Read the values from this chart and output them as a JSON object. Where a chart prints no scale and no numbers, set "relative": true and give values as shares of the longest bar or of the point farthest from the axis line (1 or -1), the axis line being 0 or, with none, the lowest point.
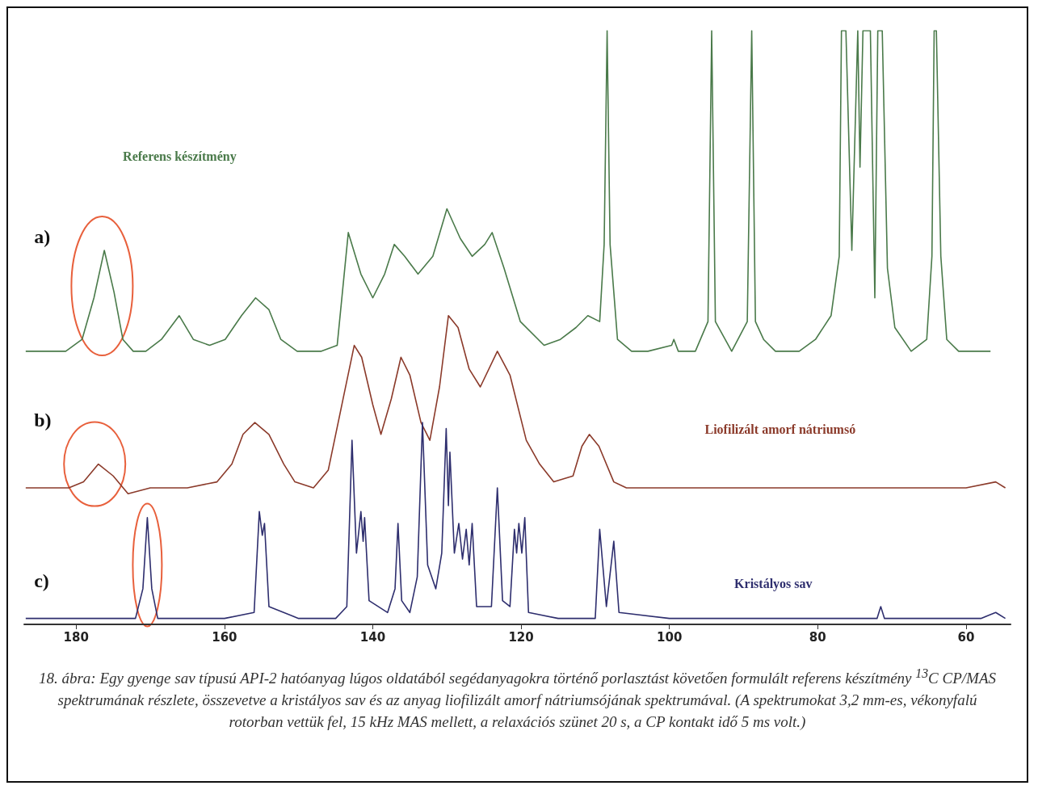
{
  "chart_data": {
    "type": "line",
    "relative": true,
    "xlim": [
      187,
      54
    ],
    "xticks": [
      180,
      160,
      140,
      120,
      100,
      80,
      60
    ],
    "grid": false,
    "legend": false,
    "marker": "none",
    "line_style": "solid",
    "series": [
      {
        "name": "Referens készítmény",
        "color": "#4a7a4a",
        "x": [
          186.8,
          181.4,
          179.2,
          177.6,
          176.2,
          174.9,
          173.7,
          172.3,
          170.6,
          168.5,
          166.1,
          164.2,
          162.0,
          159.9,
          157.7,
          155.8,
          154.0,
          152.4,
          150.2,
          147.0,
          144.8,
          143.3,
          141.6,
          140.0,
          138.4,
          137.1,
          135.7,
          133.9,
          131.9,
          130.0,
          128.2,
          126.6,
          124.9,
          123.9,
          122.3,
          120.1,
          116.9,
          114.7,
          112.6,
          111.0,
          109.4,
          108.8,
          108.4,
          108.0,
          107.0,
          105.1,
          102.9,
          99.7,
          99.4,
          98.8,
          96.5,
          94.8,
          94.3,
          93.8,
          91.6,
          89.5,
          88.9,
          88.4,
          87.3,
          85.7,
          82.5,
          80.3,
          78.2,
          77.1,
          76.8,
          76.2,
          75.4,
          74.6,
          74.3,
          73.9,
          72.9,
          72.3,
          71.9,
          71.3,
          70.6,
          69.6,
          67.4,
          65.3,
          64.6,
          64.3,
          64.0,
          63.4,
          62.6,
          61.0,
          58.8,
          56.7
        ],
        "values": [
          0.46,
          0.46,
          0.48,
          0.55,
          0.63,
          0.56,
          0.48,
          0.46,
          0.46,
          0.48,
          0.52,
          0.48,
          0.47,
          0.48,
          0.52,
          0.55,
          0.53,
          0.48,
          0.46,
          0.46,
          0.47,
          0.66,
          0.59,
          0.55,
          0.59,
          0.64,
          0.62,
          0.59,
          0.62,
          0.7,
          0.65,
          0.62,
          0.64,
          0.66,
          0.6,
          0.51,
          0.47,
          0.48,
          0.5,
          0.52,
          0.51,
          0.64,
          1,
          0.64,
          0.48,
          0.46,
          0.46,
          0.47,
          0.48,
          0.46,
          0.46,
          0.51,
          1,
          0.51,
          0.46,
          0.51,
          1,
          0.51,
          0.48,
          0.46,
          0.46,
          0.48,
          0.52,
          0.62,
          1,
          1,
          0.63,
          1,
          0.77,
          1,
          1,
          0.55,
          1,
          1,
          0.6,
          0.5,
          0.46,
          0.48,
          0.62,
          1,
          1,
          0.62,
          0.48,
          0.46,
          0.46,
          0.46
        ]
      },
      {
        "name": "Liofilizált amorf nátriumsó",
        "color": "#8b3a2a",
        "x": [
          186.8,
          181,
          179,
          177.0,
          175,
          173,
          170,
          165,
          161,
          159,
          157.5,
          155.9,
          154,
          152,
          150.5,
          148,
          146,
          144,
          142.5,
          141.5,
          140,
          138.9,
          137.5,
          136.2,
          135,
          133.5,
          132.3,
          131,
          129.8,
          128.5,
          127,
          125.5,
          123.2,
          121.5,
          119.3,
          117.5,
          115.6,
          113,
          111.8,
          110.8,
          109.5,
          107.5,
          105.8,
          100,
          90,
          80,
          70,
          60,
          56,
          54.7
        ],
        "values": [
          0.23,
          0.23,
          0.24,
          0.27,
          0.25,
          0.22,
          0.23,
          0.23,
          0.24,
          0.27,
          0.32,
          0.34,
          0.32,
          0.27,
          0.24,
          0.23,
          0.26,
          0.38,
          0.47,
          0.45,
          0.37,
          0.32,
          0.38,
          0.45,
          0.42,
          0.34,
          0.31,
          0.4,
          0.52,
          0.5,
          0.43,
          0.4,
          0.46,
          0.42,
          0.31,
          0.27,
          0.24,
          0.25,
          0.3,
          0.32,
          0.3,
          0.24,
          0.23,
          0.23,
          0.23,
          0.23,
          0.23,
          0.23,
          0.24,
          0.23
        ]
      },
      {
        "name": "Kristályos sav",
        "color": "#2e2e6e",
        "x": [
          186.8,
          180,
          175,
          172,
          171,
          170.4,
          169.8,
          169,
          165,
          160,
          156,
          155.3,
          154.9,
          154.6,
          154,
          150,
          145,
          143.5,
          142.8,
          142.2,
          141.6,
          141.3,
          141.1,
          140.5,
          138,
          137,
          136.6,
          136.1,
          135,
          134,
          133.3,
          132.6,
          131.5,
          130.7,
          130.1,
          129.8,
          129.6,
          129,
          128.4,
          127.9,
          127.4,
          127,
          126.6,
          126,
          124,
          123.2,
          122.5,
          121.5,
          120.9,
          120.6,
          120.3,
          119.9,
          119.5,
          119,
          115,
          110,
          109.4,
          108.5,
          107.5,
          106.8,
          100,
          90,
          80,
          72,
          71.5,
          71,
          65,
          58,
          56,
          54.7
        ],
        "values": [
          0.01,
          0.01,
          0.01,
          0.01,
          0.06,
          0.18,
          0.06,
          0.01,
          0.01,
          0.01,
          0.02,
          0.19,
          0.15,
          0.17,
          0.03,
          0.01,
          0.01,
          0.03,
          0.31,
          0.12,
          0.19,
          0.14,
          0.18,
          0.04,
          0.02,
          0.06,
          0.17,
          0.04,
          0.02,
          0.08,
          0.34,
          0.1,
          0.06,
          0.12,
          0.33,
          0.2,
          0.29,
          0.12,
          0.17,
          0.11,
          0.16,
          0.1,
          0.17,
          0.03,
          0.03,
          0.23,
          0.04,
          0.03,
          0.16,
          0.12,
          0.17,
          0.12,
          0.18,
          0.02,
          0.01,
          0.01,
          0.16,
          0.03,
          0.14,
          0.02,
          0.01,
          0.01,
          0.01,
          0.01,
          0.03,
          0.01,
          0.01,
          0.01,
          0.02,
          0.01
        ]
      }
    ],
    "annotations": [
      "a)",
      "b)",
      "c)",
      "18. ábra: Egy gyenge sav típusú API-2 hatóanyag lúgos oldatából segédanyagokra történő porlasztást követően formulált referens készítmény $^{13}$C CP/MAS spektrumának részlete, összevetve a kristályos sav és az anyag liofilizált amorf nátriumsójának spektrumával. (A spektrumokat 3,2 mm-es, vékonyfalú rotorban vettük fel, 15 kHz MAS mellett, a relaxációs szünet 20 s, a CP kontakt idő 5 ms volt.)"
    ]
  }
}
